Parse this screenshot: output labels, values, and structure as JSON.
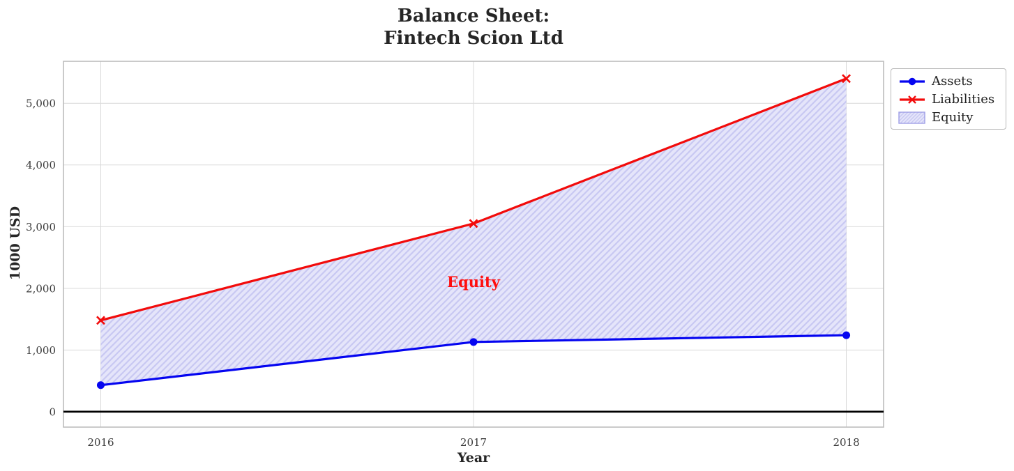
{
  "chart_data": {
    "type": "line",
    "title": "Balance Sheet:\nFintech Scion Ltd",
    "title_lines": [
      "Balance Sheet:",
      "Fintech Scion Ltd"
    ],
    "xlabel": "Year",
    "ylabel": "1000 USD",
    "x": [
      2016,
      2017,
      2018
    ],
    "x_tick_labels": [
      "2016",
      "2017",
      "2018"
    ],
    "series": [
      {
        "name": "Assets",
        "color": "#0505f0",
        "marker": "circle",
        "line_width": 3.2,
        "values": [
          430,
          1130,
          1240
        ]
      },
      {
        "name": "Liabilities",
        "color": "#f20b0b",
        "marker": "x",
        "line_width": 3.2,
        "values": [
          1480,
          3050,
          5400
        ]
      }
    ],
    "fill_between": {
      "label": "Equity",
      "between_series": [
        "Assets",
        "Liabilities"
      ],
      "fill_color": "#e5e5fa",
      "hatch_color": "#c8c8f2",
      "hatch_style": "//"
    },
    "annotation": {
      "text": "Equity",
      "x": 2017,
      "y": 2100,
      "color": "#ff0e0e"
    },
    "yticks": {
      "values": [
        0,
        1000,
        2000,
        3000,
        4000,
        5000
      ],
      "labels": [
        "0",
        "1,000",
        "2,000",
        "3,000",
        "4,000",
        "5,000"
      ]
    },
    "xlim": [
      2015.9,
      2018.1
    ],
    "ylim": [
      -250,
      5680
    ],
    "grid": true,
    "zero_line_color": "#000000",
    "legend": {
      "position": "outside top-right",
      "items": [
        "Assets",
        "Liabilities",
        "Equity"
      ]
    }
  },
  "style": {
    "grid_color": "#d9d9d9",
    "spine_color": "#bcbcbc",
    "tick_label_color": "#3a3a3a",
    "text_color": "#262626",
    "background": "#ffffff",
    "legend_swatch_border": "#9f9fe6"
  }
}
